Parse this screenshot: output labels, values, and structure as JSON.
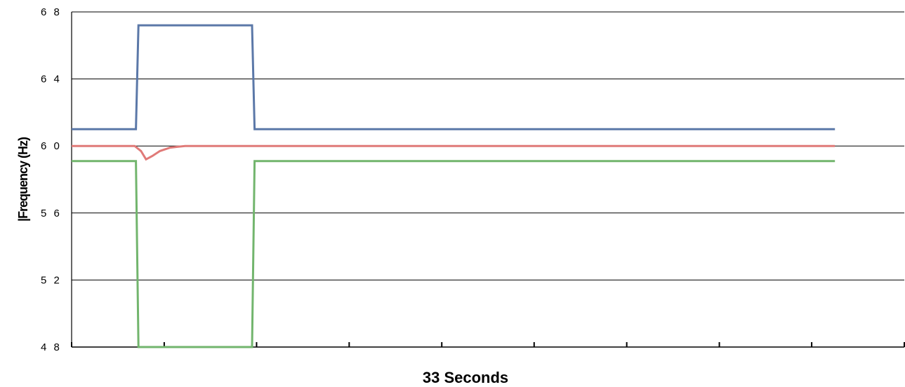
{
  "chart_data": {
    "type": "line",
    "title": "",
    "xlabel": "33 Seconds",
    "ylabel": "|Frequency (Hz)",
    "ylim": [
      48,
      68
    ],
    "yticks": [
      48,
      52,
      56,
      60,
      64,
      68
    ],
    "ytick_labels": [
      "4 8",
      "5 2",
      "5 6",
      "6 0",
      "6 4",
      "6 8"
    ],
    "xlim": [
      0,
      33
    ],
    "xticks": [
      0,
      3.67,
      7.33,
      11,
      14.67,
      18.33,
      22,
      25.67,
      29.33,
      33
    ],
    "grid": "horizontal",
    "legend": "none",
    "series": [
      {
        "color": "#5b78a8",
        "x": [
          0,
          2.55,
          2.65,
          7.15,
          7.25,
          30.25
        ],
        "y": [
          61.0,
          61.0,
          67.2,
          67.2,
          61.0,
          61.0
        ]
      },
      {
        "color": "#e07a78",
        "x": [
          0,
          2.5,
          2.75,
          2.95,
          3.2,
          3.5,
          3.9,
          4.5,
          5.5,
          30.25
        ],
        "y": [
          60.0,
          60.0,
          59.7,
          59.2,
          59.4,
          59.7,
          59.9,
          60.0,
          60.0,
          60.0
        ]
      },
      {
        "color": "#72b56d",
        "x": [
          0,
          2.55,
          2.65,
          7.15,
          7.25,
          30.25
        ],
        "y": [
          59.1,
          59.1,
          48,
          48,
          59.1,
          59.1
        ]
      }
    ]
  }
}
